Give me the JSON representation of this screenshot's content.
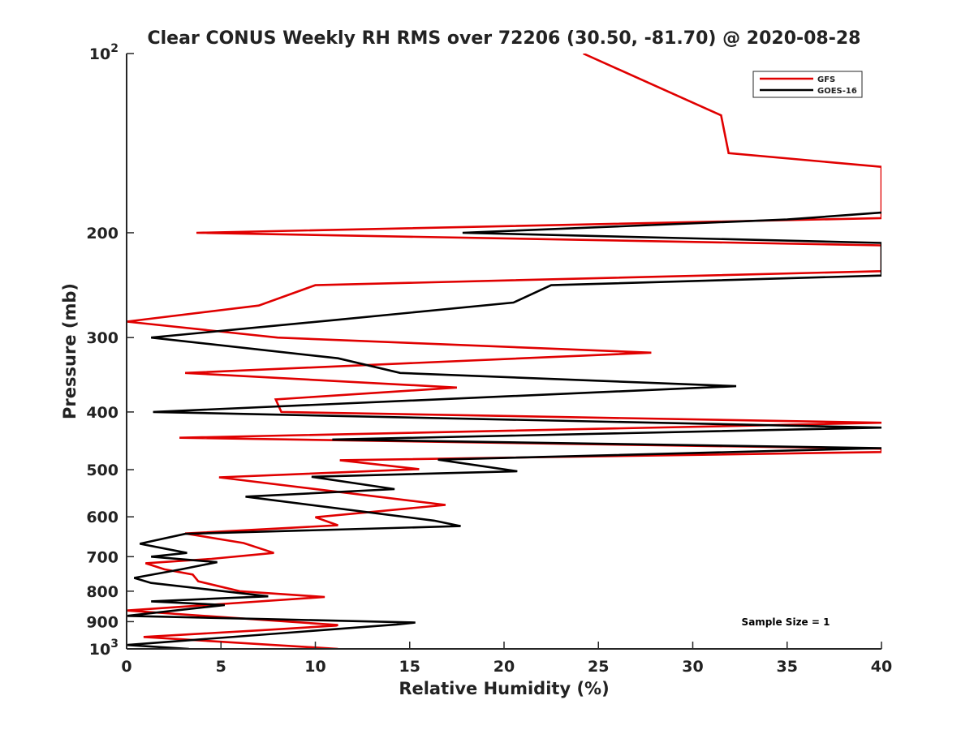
{
  "chart_data": {
    "type": "line",
    "title": "Clear CONUS Weekly RH RMS over 72206 (30.50, -81.70) @ 2020-08-28",
    "xlabel": "Relative Humidity (%)",
    "ylabel": "Pressure (mb)",
    "xlim": [
      0,
      40
    ],
    "ylim": [
      100,
      1000
    ],
    "y_scale": "log",
    "y_direction": "reversed",
    "grid": false,
    "legend_position": "top-right",
    "x_ticks": [
      "0",
      "5",
      "10",
      "15",
      "20",
      "25",
      "30",
      "35",
      "40"
    ],
    "y_ticks": [
      {
        "value": 100,
        "base": "10",
        "exp": "2"
      },
      {
        "value": 200,
        "base": "200",
        "exp": ""
      },
      {
        "value": 300,
        "base": "300",
        "exp": ""
      },
      {
        "value": 400,
        "base": "400",
        "exp": ""
      },
      {
        "value": 500,
        "base": "500",
        "exp": ""
      },
      {
        "value": 600,
        "base": "600",
        "exp": ""
      },
      {
        "value": 700,
        "base": "700",
        "exp": ""
      },
      {
        "value": 800,
        "base": "800",
        "exp": ""
      },
      {
        "value": 900,
        "base": "900",
        "exp": ""
      },
      {
        "value": 1000,
        "base": "10",
        "exp": "3"
      }
    ],
    "annotation": "Sample Size = 1",
    "series": [
      {
        "name": "GFS",
        "color": "#e00000",
        "points": [
          [
            24.2,
            100
          ],
          [
            31.5,
            127
          ],
          [
            31.9,
            147
          ],
          [
            40,
            155
          ],
          [
            40,
            189
          ],
          [
            3.7,
            200
          ],
          [
            40,
            210
          ],
          [
            40,
            232
          ],
          [
            10.0,
            245
          ],
          [
            7.0,
            265
          ],
          [
            0,
            282
          ],
          [
            8.0,
            300
          ],
          [
            27.8,
            318
          ],
          [
            3.1,
            344
          ],
          [
            17.5,
            364
          ],
          [
            7.9,
            381
          ],
          [
            8.2,
            400
          ],
          [
            40,
            417
          ],
          [
            2.8,
            442
          ],
          [
            40,
            461
          ],
          [
            40,
            467
          ],
          [
            11.3,
            482
          ],
          [
            15.5,
            499
          ],
          [
            4.9,
            515
          ],
          [
            16.9,
            573
          ],
          [
            10.0,
            601
          ],
          [
            11.2,
            620
          ],
          [
            3.1,
            640
          ],
          [
            6.2,
            664
          ],
          [
            7.8,
            690
          ],
          [
            4.5,
            706
          ],
          [
            1.0,
            718
          ],
          [
            2.0,
            735
          ],
          [
            3.5,
            750
          ],
          [
            3.8,
            770
          ],
          [
            6.0,
            800
          ],
          [
            10.5,
            818
          ],
          [
            0,
            862
          ],
          [
            11.2,
            912
          ],
          [
            11.1,
            914
          ],
          [
            7.2,
            930
          ],
          [
            0.9,
            955
          ],
          [
            11.2,
            1000
          ]
        ]
      },
      {
        "name": "GOES-16",
        "color": "#000000",
        "points": [
          [
            40,
            185
          ],
          [
            35.0,
            190
          ],
          [
            17.8,
            200
          ],
          [
            40,
            208
          ],
          [
            40,
            236
          ],
          [
            22.5,
            245
          ],
          [
            20.5,
            262
          ],
          [
            11.2,
            280
          ],
          [
            1.3,
            300
          ],
          [
            11.2,
            325
          ],
          [
            14.5,
            344
          ],
          [
            32.3,
            362
          ],
          [
            1.4,
            400
          ],
          [
            40,
            425
          ],
          [
            10.9,
            445
          ],
          [
            40,
            460
          ],
          [
            16.5,
            481
          ],
          [
            20.7,
            503
          ],
          [
            9.8,
            514
          ],
          [
            14.2,
            539
          ],
          [
            6.3,
            555
          ],
          [
            16.3,
            609
          ],
          [
            17.7,
            622
          ],
          [
            3.1,
            641
          ],
          [
            0.7,
            666
          ],
          [
            3.2,
            690
          ],
          [
            1.3,
            700
          ],
          [
            4.8,
            715
          ],
          [
            2.9,
            735
          ],
          [
            0.4,
            760
          ],
          [
            1.3,
            775
          ],
          [
            7.5,
            816
          ],
          [
            1.3,
            832
          ],
          [
            5.2,
            844
          ],
          [
            0,
            880
          ],
          [
            15.3,
            903
          ],
          [
            14.3,
            910
          ],
          [
            0,
            985
          ],
          [
            3.3,
            1000
          ]
        ]
      }
    ]
  }
}
